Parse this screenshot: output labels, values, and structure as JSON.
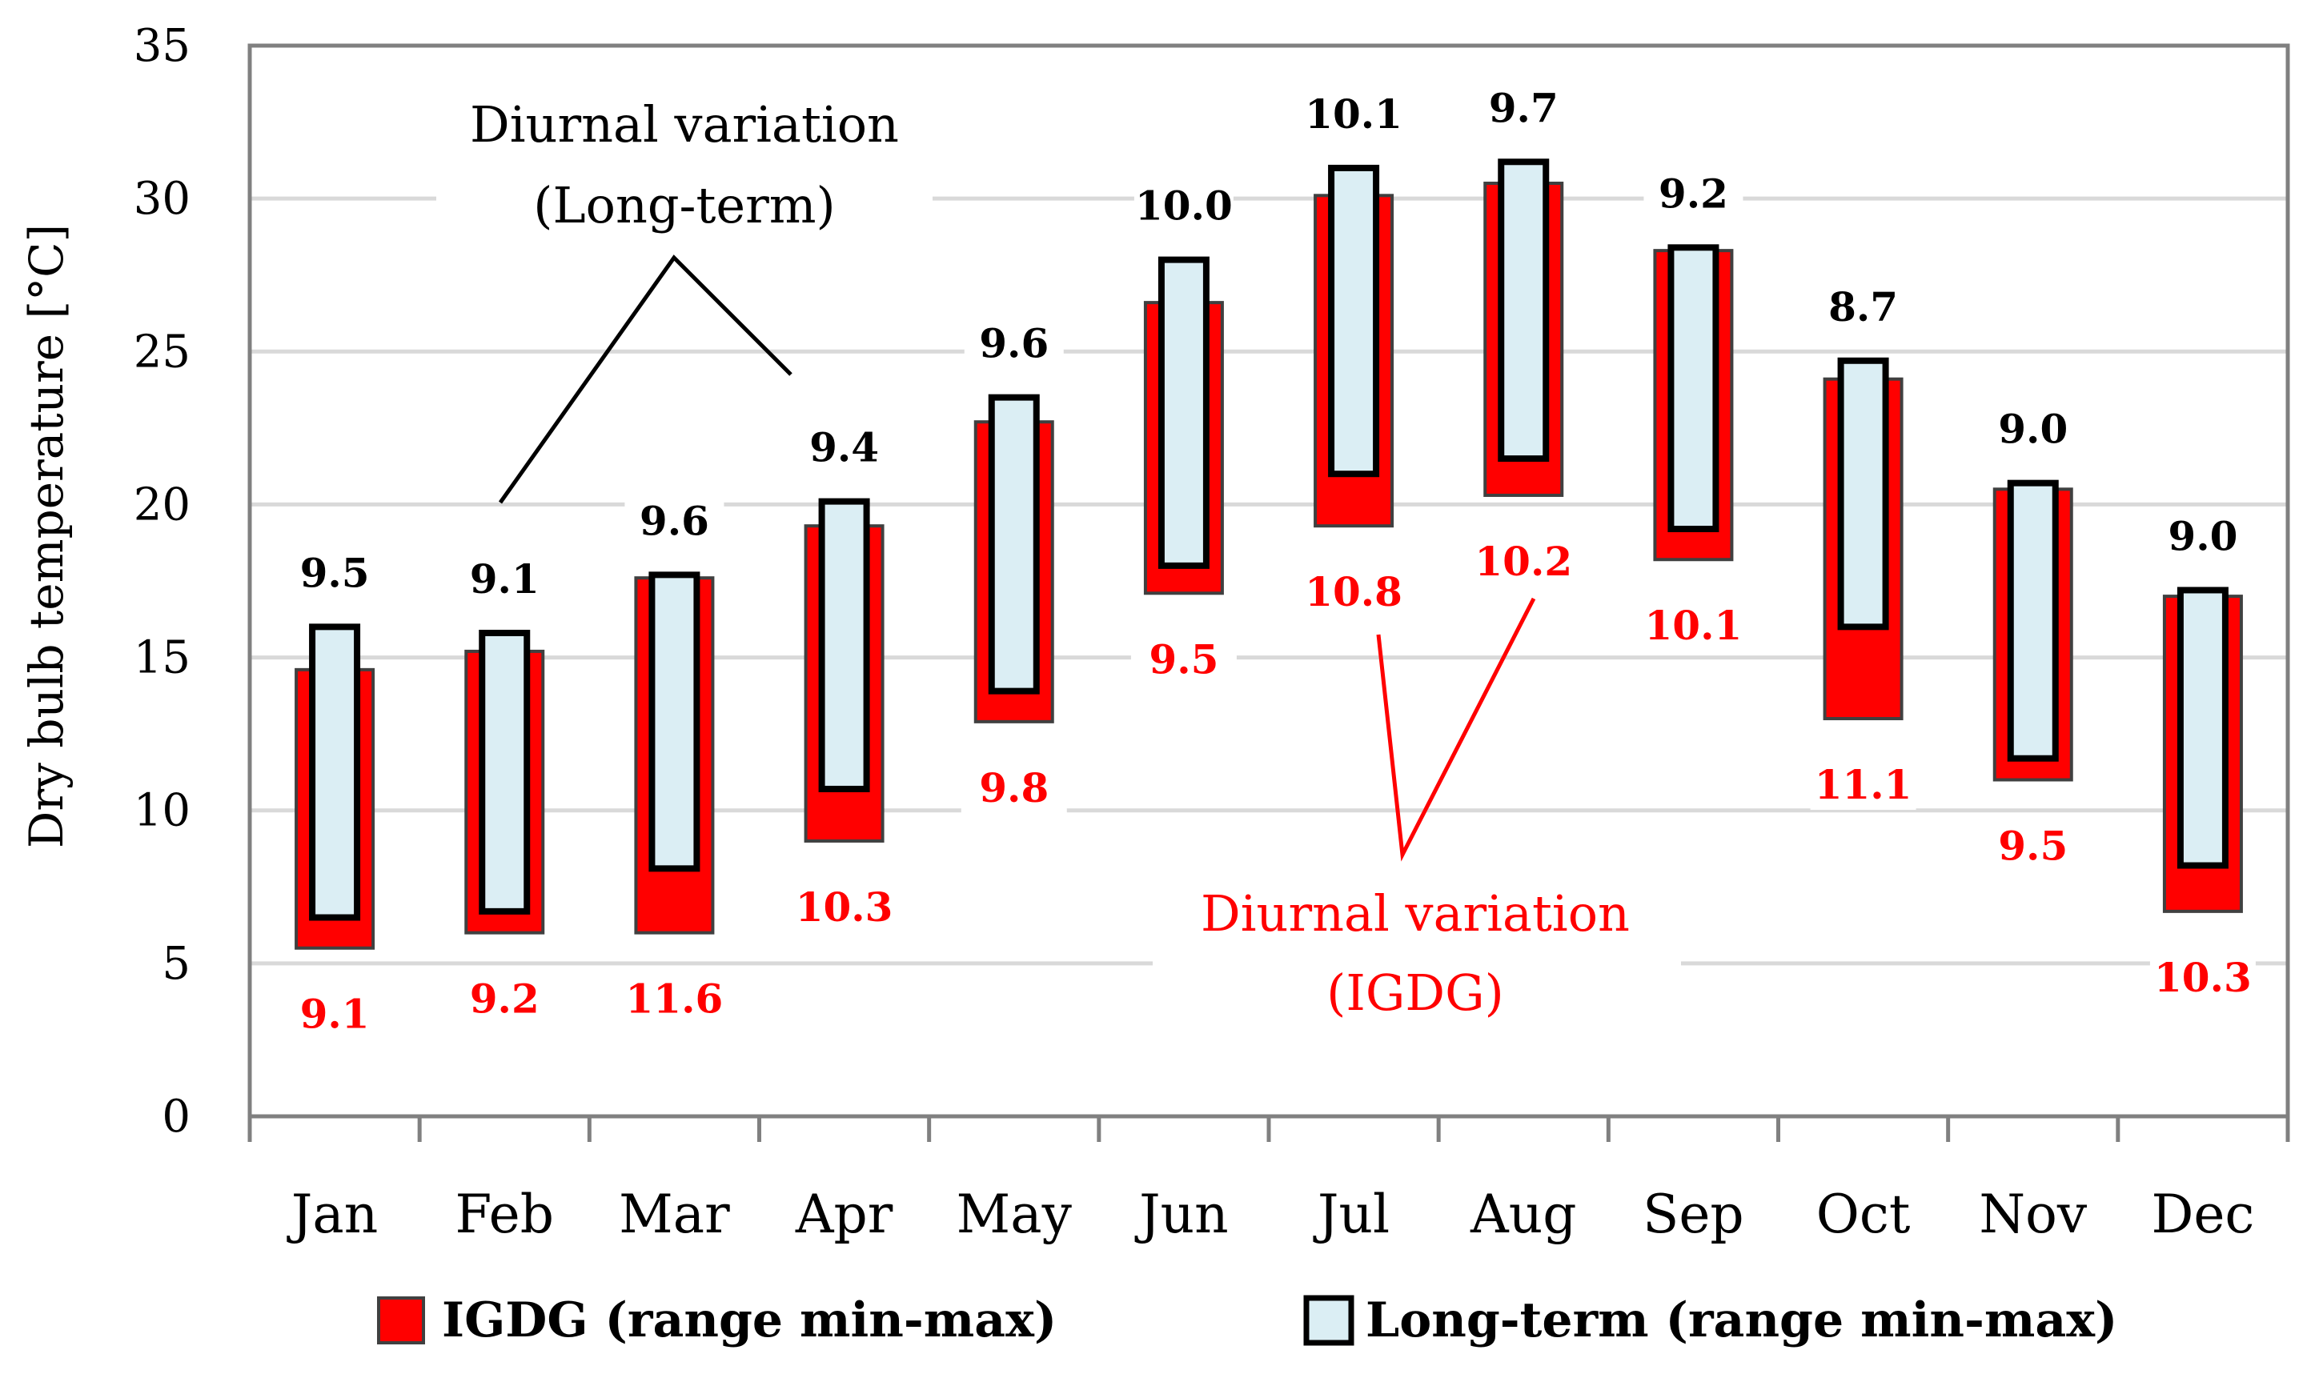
{
  "chart_data": {
    "type": "bar",
    "subtype": "floating-range",
    "ylabel": "Dry bulb temperature [°C]",
    "xlabel": "",
    "ylim": [
      0,
      35
    ],
    "yticks": [
      0,
      5,
      10,
      15,
      20,
      25,
      30,
      35
    ],
    "grid": true,
    "categories": [
      "Jan",
      "Feb",
      "Mar",
      "Apr",
      "May",
      "Jun",
      "Jul",
      "Aug",
      "Sep",
      "Oct",
      "Nov",
      "Dec"
    ],
    "series": [
      {
        "name": "IGDG (range min-max)",
        "color": "#ff0000",
        "min": [
          5.5,
          6.0,
          6.0,
          9.0,
          12.9,
          17.1,
          19.3,
          20.3,
          18.2,
          13.0,
          11.0,
          6.7
        ],
        "max": [
          14.6,
          15.2,
          17.6,
          19.3,
          22.7,
          26.6,
          30.1,
          30.5,
          28.3,
          24.1,
          20.5,
          17.0
        ],
        "labels": [
          "9.1",
          "9.2",
          "11.6",
          "10.3",
          "9.8",
          "9.5",
          "10.8",
          "10.2",
          "10.1",
          "11.1",
          "9.5",
          "10.3"
        ]
      },
      {
        "name": "Long-term (range min-max)",
        "color": "#dbeef4",
        "min": [
          6.5,
          6.7,
          8.1,
          10.7,
          13.9,
          18.0,
          21.0,
          21.5,
          19.2,
          16.0,
          11.7,
          8.2
        ],
        "max": [
          16.0,
          15.8,
          17.7,
          20.1,
          23.5,
          28.0,
          31.0,
          31.2,
          28.4,
          24.7,
          20.7,
          17.2
        ],
        "labels": [
          "9.5",
          "9.1",
          "9.6",
          "9.4",
          "9.6",
          "10.0",
          "10.1",
          "9.7",
          "9.2",
          "8.7",
          "9.0",
          "9.0"
        ]
      }
    ],
    "annotations": [
      {
        "lines": [
          "Diurnal variation",
          "(Long-term)"
        ],
        "color": "#000000"
      },
      {
        "lines": [
          "Diurnal variation",
          "(IGDG)"
        ],
        "color": "#ff0000"
      }
    ],
    "legend": {
      "position": "bottom",
      "items": [
        "IGDG (range min-max)",
        "Long-term (range min-max)"
      ]
    }
  }
}
